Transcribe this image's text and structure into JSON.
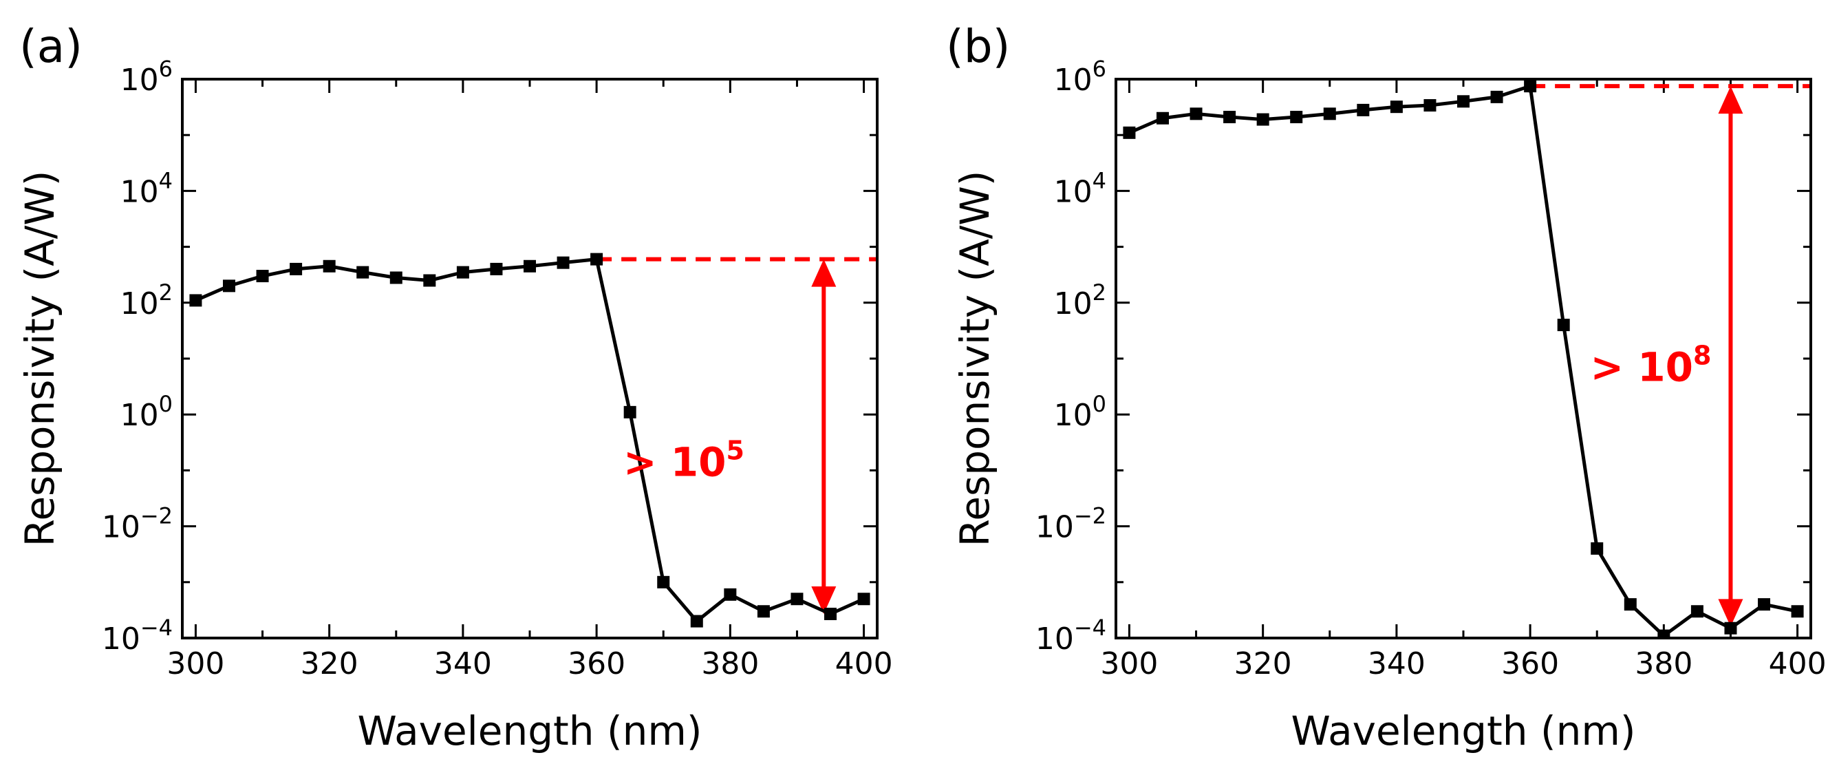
{
  "colors": {
    "data_line": "#000000",
    "annotation": "#ff0000"
  },
  "chart_data": [
    {
      "type": "line",
      "panel_label": "(a)",
      "xlabel": "Wavelength (nm)",
      "ylabel": "Responsivity (A/W)",
      "xlim": [
        298,
        402
      ],
      "ylim": [
        0.0001,
        1000000
      ],
      "yscale": "log",
      "x_ticks": [
        300,
        320,
        340,
        360,
        380,
        400
      ],
      "y_ticks": [
        {
          "value": 0.0001,
          "base": "10",
          "exp": "−4"
        },
        {
          "value": 0.01,
          "base": "10",
          "exp": "−2"
        },
        {
          "value": 1,
          "base": "10",
          "exp": "0"
        },
        {
          "value": 100,
          "base": "10",
          "exp": "2"
        },
        {
          "value": 10000,
          "base": "10",
          "exp": "4"
        },
        {
          "value": 1000000,
          "base": "10",
          "exp": "6"
        }
      ],
      "series": [
        {
          "marker": "square",
          "x": [
            300,
            305,
            310,
            315,
            320,
            325,
            330,
            335,
            340,
            345,
            350,
            355,
            360,
            365,
            370,
            375,
            380,
            385,
            390,
            395,
            400
          ],
          "y": [
            110,
            200,
            300,
            400,
            450,
            350,
            280,
            250,
            350,
            400,
            450,
            520,
            600,
            1.1,
            0.001,
            0.0002,
            0.0006,
            0.0003,
            0.0005,
            0.00027,
            0.0005
          ]
        }
      ],
      "annotation": {
        "ref_level": 600,
        "ref_x_start": 360,
        "arrow_x": 394,
        "arrow_bottom": 0.00027,
        "text_base": "> 10",
        "text_exp": "5",
        "text_x": 364,
        "text_y": 0.08
      }
    },
    {
      "type": "line",
      "panel_label": "(b)",
      "xlabel": "Wavelength (nm)",
      "ylabel": "Responsivity (A/W)",
      "xlim": [
        298,
        402
      ],
      "ylim": [
        0.0001,
        1000000
      ],
      "yscale": "log",
      "x_ticks": [
        300,
        320,
        340,
        360,
        380,
        400
      ],
      "y_ticks": [
        {
          "value": 0.0001,
          "base": "10",
          "exp": "−4"
        },
        {
          "value": 0.01,
          "base": "10",
          "exp": "−2"
        },
        {
          "value": 1,
          "base": "10",
          "exp": "0"
        },
        {
          "value": 100,
          "base": "10",
          "exp": "2"
        },
        {
          "value": 10000,
          "base": "10",
          "exp": "4"
        },
        {
          "value": 1000000,
          "base": "10",
          "exp": "6"
        }
      ],
      "series": [
        {
          "marker": "square",
          "x": [
            300,
            305,
            310,
            315,
            320,
            325,
            330,
            335,
            340,
            345,
            350,
            355,
            360,
            365,
            370,
            375,
            380,
            385,
            390,
            395,
            400
          ],
          "y": [
            110000,
            200000,
            240000,
            210000,
            190000,
            210000,
            240000,
            280000,
            320000,
            340000,
            400000,
            480000,
            750000,
            40,
            0.004,
            0.0004,
            0.00011,
            0.0003,
            0.00015,
            0.0004,
            0.0003
          ]
        }
      ],
      "annotation": {
        "ref_level": 750000,
        "ref_x_start": 360,
        "arrow_x": 390,
        "arrow_bottom": 0.00016,
        "text_base": "> 10",
        "text_exp": "8",
        "text_x": 369,
        "text_y": 4
      }
    }
  ]
}
